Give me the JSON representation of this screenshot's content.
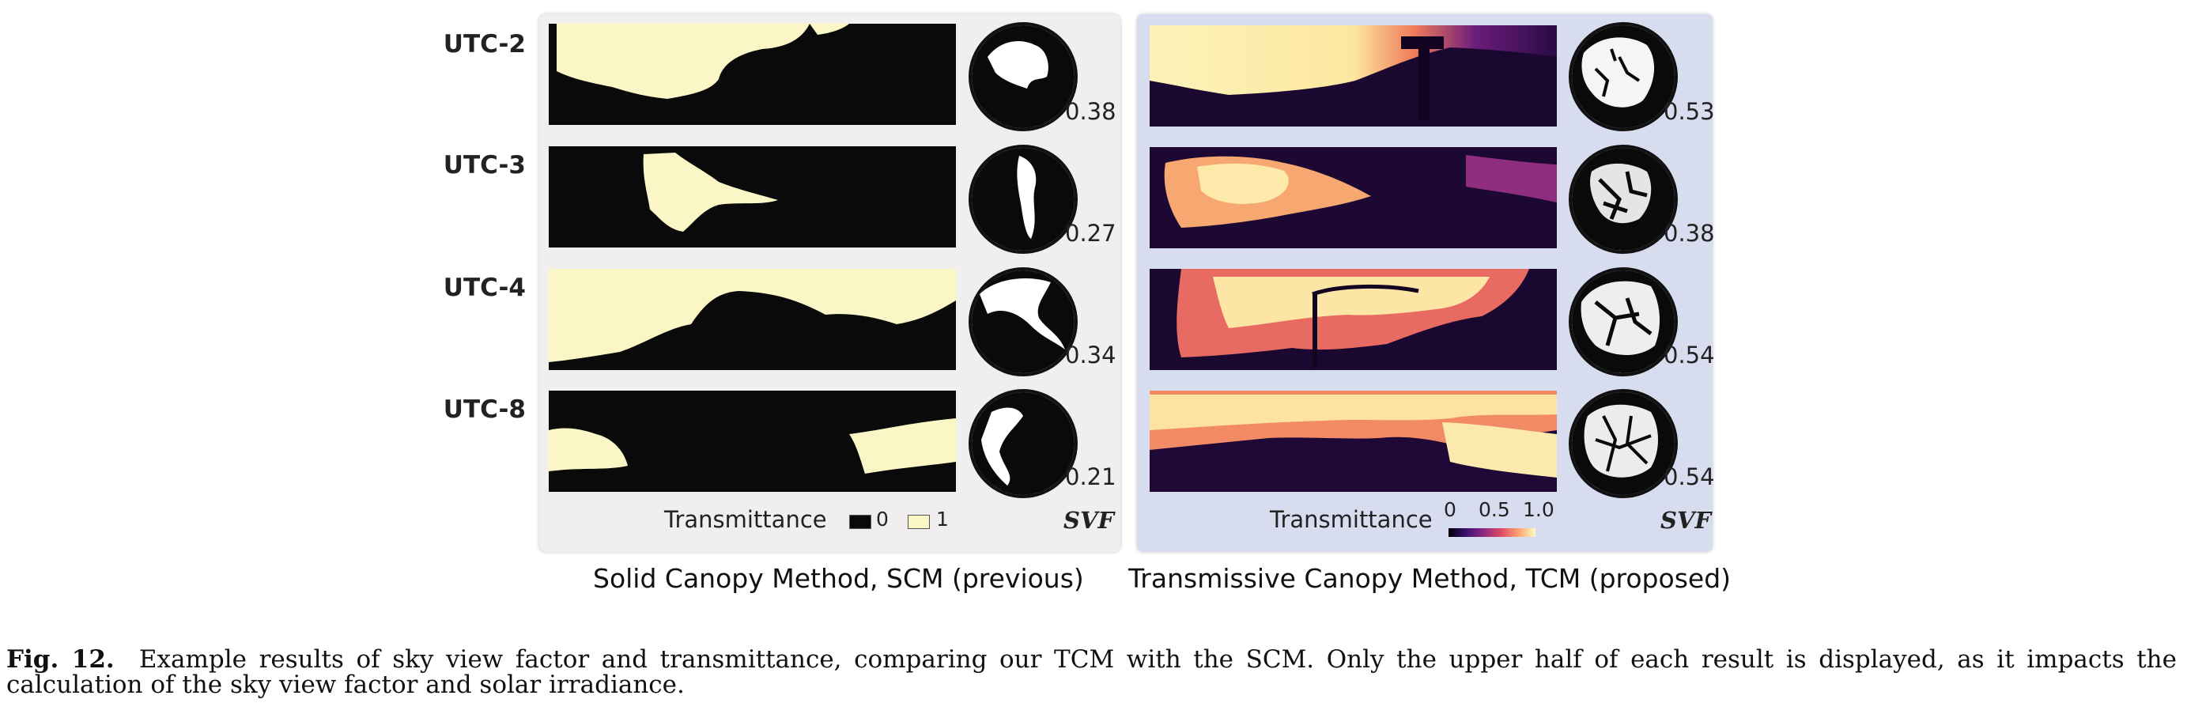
{
  "rows": [
    {
      "label": "UTC-2",
      "scm_svf": "0.38",
      "tcm_svf": "0.53"
    },
    {
      "label": "UTC-3",
      "scm_svf": "0.27",
      "tcm_svf": "0.38"
    },
    {
      "label": "UTC-4",
      "scm_svf": "0.34",
      "tcm_svf": "0.54"
    },
    {
      "label": "UTC-8",
      "scm_svf": "0.21",
      "tcm_svf": "0.54"
    }
  ],
  "scm_legend": {
    "title": "Transmittance",
    "value_0": "0",
    "value_1": "1",
    "svf_label": "SVF",
    "color_0": "#0a0a0a",
    "color_1": "#fbf6c6"
  },
  "tcm_legend": {
    "title": "Transmittance",
    "tick_0": "0",
    "tick_mid": "0.5",
    "tick_max": "1.0",
    "svf_label": "SVF",
    "colormap": "magma"
  },
  "method_captions": {
    "scm": "Solid Canopy Method, SCM (previous)",
    "tcm": "Transmissive Canopy Method, TCM (proposed)"
  },
  "figure_caption": {
    "label": "Fig. 12.",
    "text": "Example results of sky view factor and transmittance, comparing our TCM with the SCM. Only the upper half of each result is displayed, as it impacts the calculation of the sky view factor and solar irradiance."
  }
}
